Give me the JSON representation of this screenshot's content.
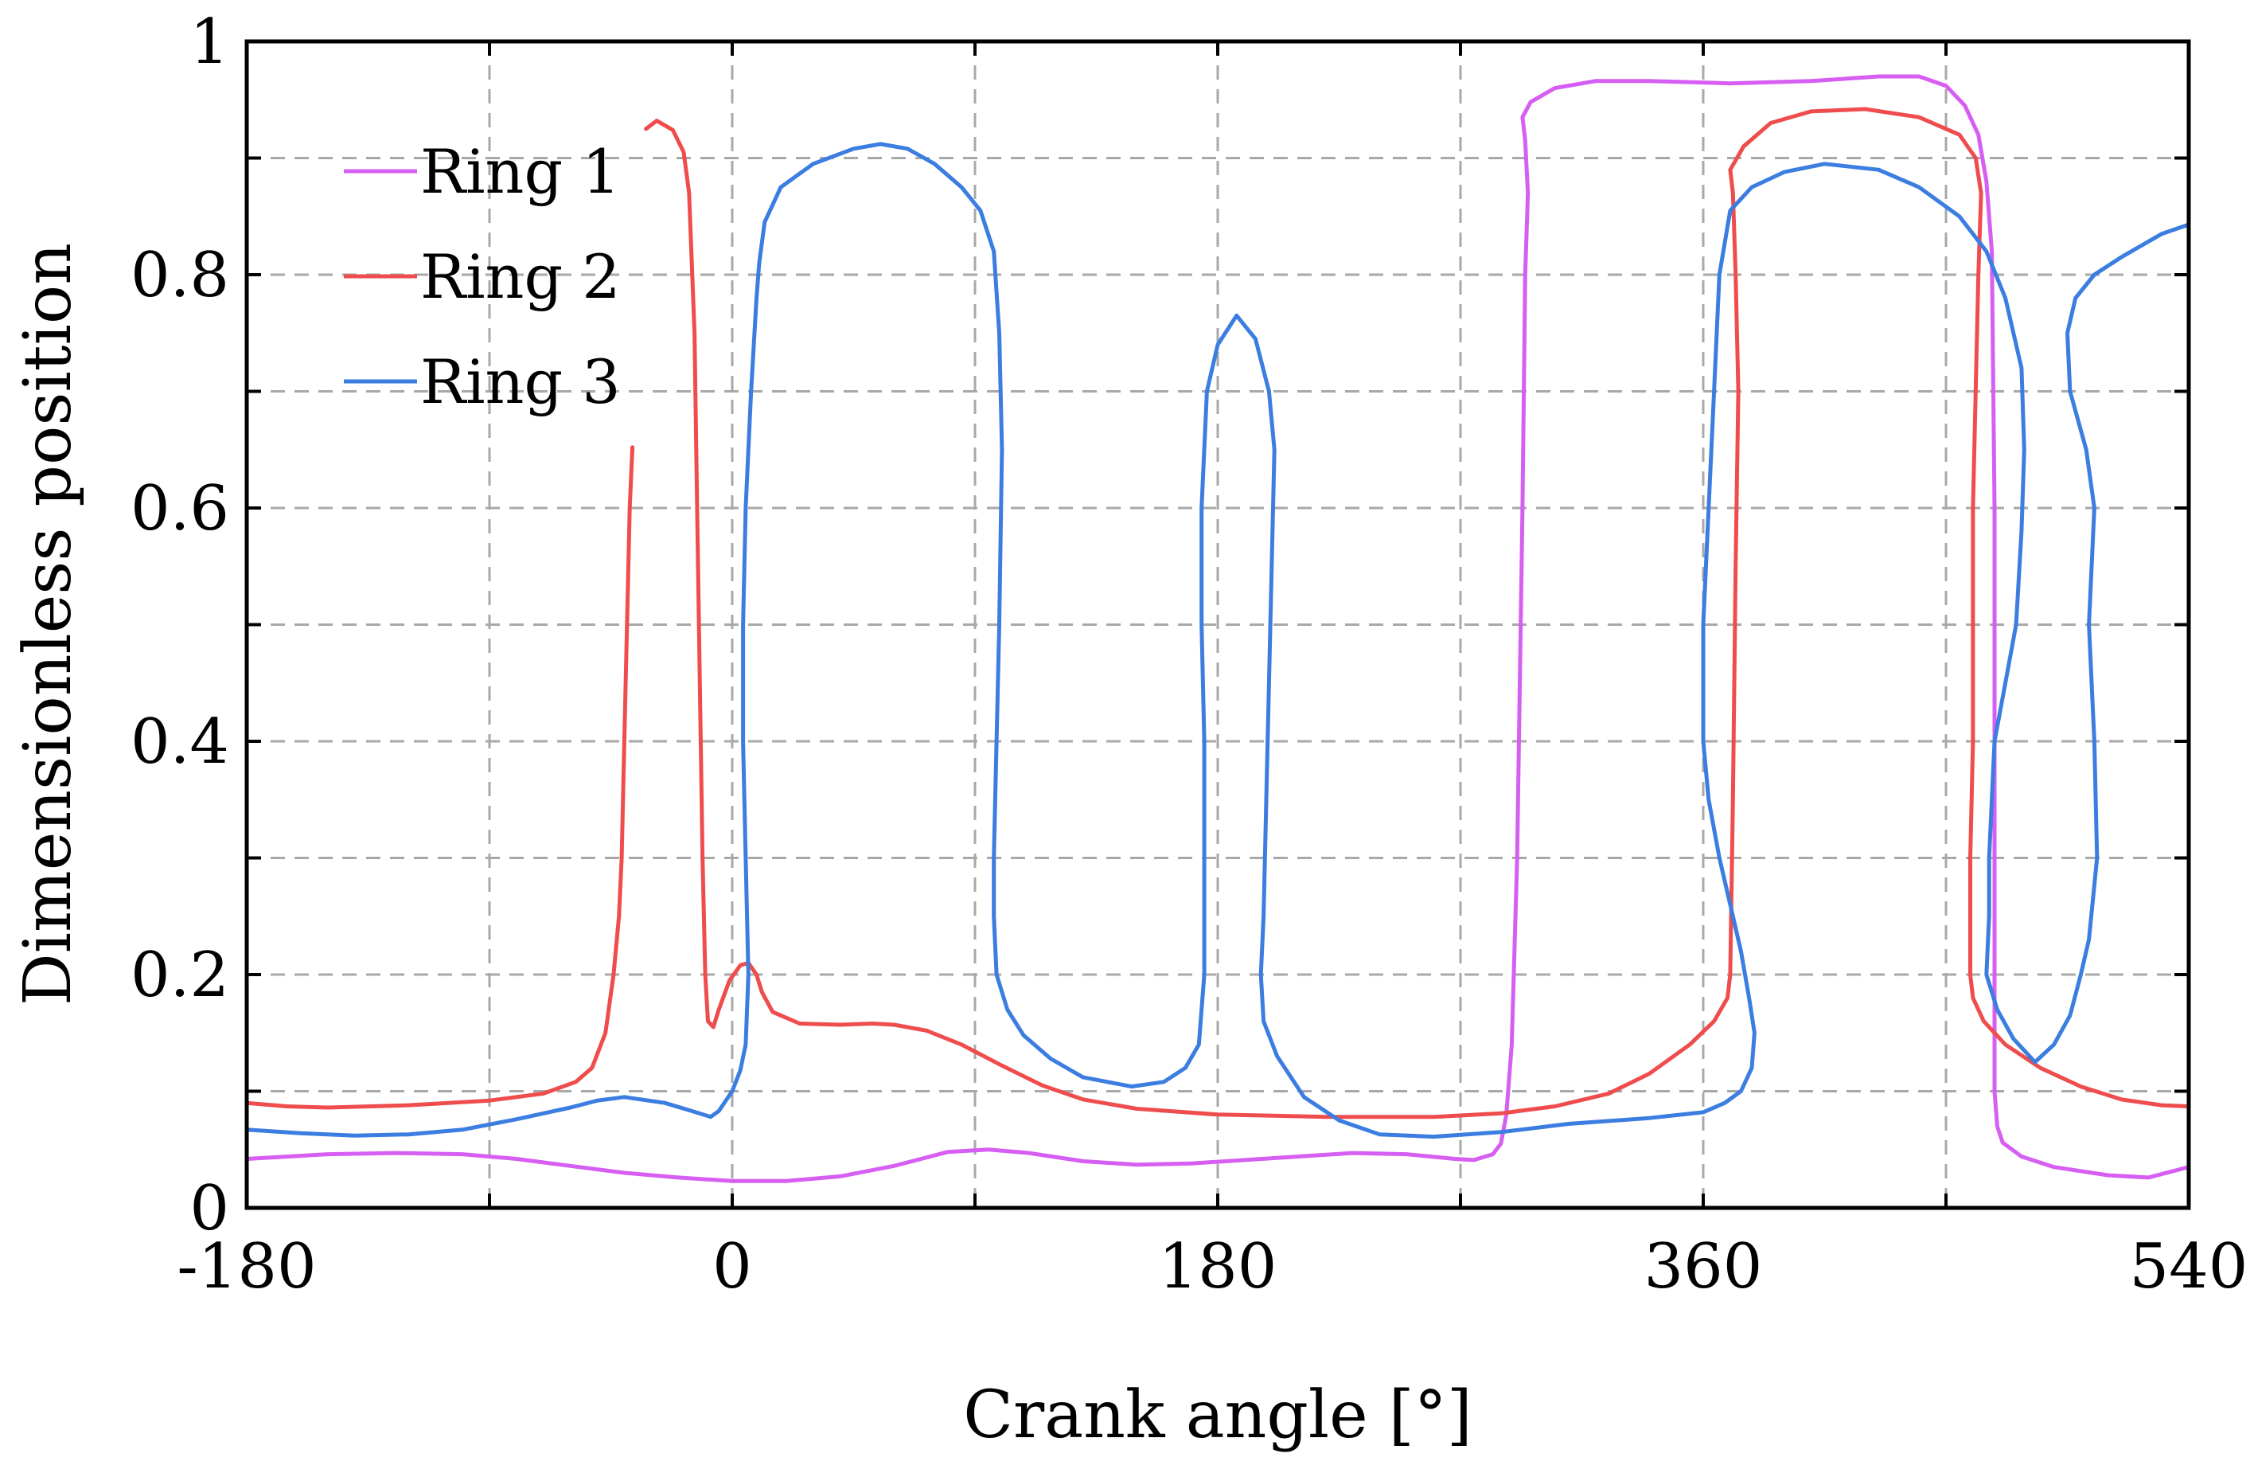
{
  "chart_data": {
    "type": "line",
    "xlabel": "Crank angle [°]",
    "ylabel": "Dimensionless position",
    "xlim": [
      -180,
      540
    ],
    "ylim": [
      0,
      1
    ],
    "xticks": [
      -180,
      -90,
      0,
      90,
      180,
      270,
      360,
      450,
      540
    ],
    "yticks": [
      0,
      0.1,
      0.2,
      0.3,
      0.4,
      0.5,
      0.6,
      0.7,
      0.8,
      0.9,
      1
    ],
    "xtick_labels": [
      {
        "value": -180,
        "label": "-180"
      },
      {
        "value": 0,
        "label": "0"
      },
      {
        "value": 180,
        "label": "180"
      },
      {
        "value": 360,
        "label": "360"
      },
      {
        "value": 540,
        "label": "540"
      }
    ],
    "ytick_labels": [
      {
        "value": 0,
        "label": "0"
      },
      {
        "value": 0.2,
        "label": "0.2"
      },
      {
        "value": 0.4,
        "label": "0.4"
      },
      {
        "value": 0.6,
        "label": "0.6"
      },
      {
        "value": 0.8,
        "label": "0.8"
      },
      {
        "value": 1,
        "label": "1"
      }
    ],
    "grid": true,
    "legend_position": "top-left",
    "series": [
      {
        "name": "Ring 1",
        "color": "#d65ef2",
        "points": [
          [
            -180,
            0.042
          ],
          [
            -150,
            0.046
          ],
          [
            -125,
            0.047
          ],
          [
            -100,
            0.046
          ],
          [
            -80,
            0.042
          ],
          [
            -60,
            0.036
          ],
          [
            -40,
            0.03
          ],
          [
            -20,
            0.026
          ],
          [
            0,
            0.023
          ],
          [
            20,
            0.023
          ],
          [
            40,
            0.027
          ],
          [
            60,
            0.036
          ],
          [
            80,
            0.048
          ],
          [
            95,
            0.05
          ],
          [
            110,
            0.047
          ],
          [
            130,
            0.04
          ],
          [
            150,
            0.037
          ],
          [
            170,
            0.038
          ],
          [
            190,
            0.041
          ],
          [
            210,
            0.044
          ],
          [
            230,
            0.047
          ],
          [
            250,
            0.046
          ],
          [
            268,
            0.042
          ],
          [
            275,
            0.041
          ],
          [
            282,
            0.046
          ],
          [
            285,
            0.055
          ],
          [
            287,
            0.08
          ],
          [
            289,
            0.14
          ],
          [
            291,
            0.3
          ],
          [
            293,
            0.6
          ],
          [
            294,
            0.8
          ],
          [
            295,
            0.87
          ],
          [
            294,
            0.915
          ],
          [
            293,
            0.935
          ],
          [
            296,
            0.948
          ],
          [
            305,
            0.96
          ],
          [
            320,
            0.966
          ],
          [
            340,
            0.966
          ],
          [
            370,
            0.964
          ],
          [
            400,
            0.966
          ],
          [
            425,
            0.97
          ],
          [
            440,
            0.97
          ],
          [
            450,
            0.962
          ],
          [
            457,
            0.945
          ],
          [
            462,
            0.92
          ],
          [
            465,
            0.88
          ],
          [
            467,
            0.82
          ],
          [
            468,
            0.6
          ],
          [
            468,
            0.3
          ],
          [
            468,
            0.1
          ],
          [
            469,
            0.07
          ],
          [
            471,
            0.056
          ],
          [
            478,
            0.044
          ],
          [
            490,
            0.035
          ],
          [
            510,
            0.028
          ],
          [
            525,
            0.026
          ],
          [
            540,
            0.035
          ]
        ]
      },
      {
        "name": "Ring 2",
        "color": "#ef4d4d",
        "points": [
          [
            -37,
            0.652
          ],
          [
            -38,
            0.6
          ],
          [
            -39,
            0.5
          ],
          [
            -40,
            0.4
          ],
          [
            -41,
            0.3
          ],
          [
            -42,
            0.25
          ],
          [
            -44,
            0.2
          ],
          [
            -47,
            0.15
          ],
          [
            -52,
            0.12
          ],
          [
            -58,
            0.108
          ],
          [
            -70,
            0.098
          ],
          [
            -90,
            0.092
          ],
          [
            -120,
            0.088
          ],
          [
            -150,
            0.086
          ],
          [
            -165,
            0.087
          ],
          [
            -180,
            0.09
          ],
          [
            null,
            null
          ],
          [
            -32,
            0.925
          ],
          [
            -28,
            0.932
          ],
          [
            -22,
            0.924
          ],
          [
            -18,
            0.905
          ],
          [
            -16,
            0.87
          ],
          [
            -14,
            0.75
          ],
          [
            -13,
            0.6
          ],
          [
            -12,
            0.45
          ],
          [
            -11,
            0.3
          ],
          [
            -10,
            0.2
          ],
          [
            -9,
            0.16
          ],
          [
            -7,
            0.155
          ],
          [
            -5,
            0.17
          ],
          [
            -1,
            0.195
          ],
          [
            3,
            0.208
          ],
          [
            6,
            0.21
          ],
          [
            9,
            0.2
          ],
          [
            11,
            0.185
          ],
          [
            15,
            0.168
          ],
          [
            25,
            0.158
          ],
          [
            40,
            0.157
          ],
          [
            52,
            0.158
          ],
          [
            60,
            0.157
          ],
          [
            72,
            0.152
          ],
          [
            85,
            0.14
          ],
          [
            100,
            0.122
          ],
          [
            115,
            0.105
          ],
          [
            130,
            0.093
          ],
          [
            150,
            0.085
          ],
          [
            180,
            0.08
          ],
          [
            220,
            0.078
          ],
          [
            260,
            0.078
          ],
          [
            285,
            0.081
          ],
          [
            305,
            0.087
          ],
          [
            325,
            0.098
          ],
          [
            340,
            0.115
          ],
          [
            355,
            0.14
          ],
          [
            364,
            0.16
          ],
          [
            369,
            0.18
          ],
          [
            370,
            0.2
          ],
          [
            371,
            0.35
          ],
          [
            372,
            0.55
          ],
          [
            373,
            0.7
          ],
          [
            372,
            0.8
          ],
          [
            371,
            0.87
          ],
          [
            370,
            0.89
          ],
          [
            375,
            0.91
          ],
          [
            385,
            0.93
          ],
          [
            400,
            0.94
          ],
          [
            420,
            0.942
          ],
          [
            440,
            0.935
          ],
          [
            455,
            0.92
          ],
          [
            461,
            0.9
          ],
          [
            463,
            0.87
          ],
          [
            462,
            0.8
          ],
          [
            461,
            0.7
          ],
          [
            460,
            0.6
          ],
          [
            460,
            0.5
          ],
          [
            460,
            0.4
          ],
          [
            459,
            0.3
          ],
          [
            459,
            0.2
          ],
          [
            460,
            0.18
          ],
          [
            464,
            0.16
          ],
          [
            472,
            0.14
          ],
          [
            485,
            0.12
          ],
          [
            500,
            0.104
          ],
          [
            515,
            0.093
          ],
          [
            530,
            0.088
          ],
          [
            540,
            0.087
          ]
        ]
      },
      {
        "name": "Ring 3",
        "color": "#3b7de0",
        "points": [
          [
            -180,
            0.067
          ],
          [
            -160,
            0.064
          ],
          [
            -140,
            0.062
          ],
          [
            -120,
            0.063
          ],
          [
            -100,
            0.067
          ],
          [
            -80,
            0.076
          ],
          [
            -60,
            0.086
          ],
          [
            -50,
            0.092
          ],
          [
            -40,
            0.095
          ],
          [
            -25,
            0.09
          ],
          [
            -15,
            0.083
          ],
          [
            -8,
            0.078
          ],
          [
            -5,
            0.083
          ],
          [
            0,
            0.1
          ],
          [
            3,
            0.118
          ],
          [
            5,
            0.14
          ],
          [
            6,
            0.2
          ],
          [
            5,
            0.3
          ],
          [
            4,
            0.4
          ],
          [
            4,
            0.5
          ],
          [
            5,
            0.6
          ],
          [
            7,
            0.7
          ],
          [
            9,
            0.78
          ],
          [
            10,
            0.81
          ],
          [
            12,
            0.845
          ],
          [
            18,
            0.875
          ],
          [
            30,
            0.895
          ],
          [
            45,
            0.908
          ],
          [
            55,
            0.912
          ],
          [
            65,
            0.908
          ],
          [
            75,
            0.895
          ],
          [
            85,
            0.875
          ],
          [
            92,
            0.855
          ],
          [
            97,
            0.82
          ],
          [
            99,
            0.75
          ],
          [
            100,
            0.65
          ],
          [
            99,
            0.5
          ],
          [
            98,
            0.4
          ],
          [
            97,
            0.3
          ],
          [
            97,
            0.25
          ],
          [
            98,
            0.2
          ],
          [
            102,
            0.17
          ],
          [
            108,
            0.148
          ],
          [
            118,
            0.128
          ],
          [
            130,
            0.112
          ],
          [
            148,
            0.104
          ],
          [
            160,
            0.108
          ],
          [
            168,
            0.12
          ],
          [
            173,
            0.14
          ],
          [
            175,
            0.2
          ],
          [
            175,
            0.3
          ],
          [
            175,
            0.4
          ],
          [
            174,
            0.5
          ],
          [
            174,
            0.6
          ],
          [
            176,
            0.7
          ],
          [
            180,
            0.74
          ],
          [
            187,
            0.765
          ],
          [
            194,
            0.745
          ],
          [
            199,
            0.7
          ],
          [
            201,
            0.65
          ],
          [
            200,
            0.55
          ],
          [
            199,
            0.45
          ],
          [
            198,
            0.35
          ],
          [
            197,
            0.25
          ],
          [
            196,
            0.2
          ],
          [
            197,
            0.16
          ],
          [
            202,
            0.13
          ],
          [
            212,
            0.095
          ],
          [
            225,
            0.075
          ],
          [
            240,
            0.063
          ],
          [
            260,
            0.061
          ],
          [
            285,
            0.065
          ],
          [
            310,
            0.072
          ],
          [
            340,
            0.077
          ],
          [
            360,
            0.082
          ],
          [
            368,
            0.09
          ],
          [
            374,
            0.1
          ],
          [
            378,
            0.12
          ],
          [
            379,
            0.15
          ],
          [
            377,
            0.18
          ],
          [
            374,
            0.22
          ],
          [
            370,
            0.26
          ],
          [
            366,
            0.3
          ],
          [
            362,
            0.35
          ],
          [
            360,
            0.4
          ],
          [
            360,
            0.5
          ],
          [
            362,
            0.6
          ],
          [
            364,
            0.7
          ],
          [
            366,
            0.8
          ],
          [
            370,
            0.855
          ],
          [
            378,
            0.875
          ],
          [
            390,
            0.888
          ],
          [
            405,
            0.895
          ],
          [
            425,
            0.89
          ],
          [
            440,
            0.875
          ],
          [
            455,
            0.85
          ],
          [
            465,
            0.82
          ],
          [
            472,
            0.78
          ],
          [
            478,
            0.72
          ],
          [
            479,
            0.65
          ],
          [
            478,
            0.58
          ],
          [
            476,
            0.5
          ],
          [
            472,
            0.45
          ],
          [
            468,
            0.4
          ],
          [
            466,
            0.3
          ],
          [
            466,
            0.25
          ],
          [
            465,
            0.2
          ],
          [
            469,
            0.17
          ],
          [
            475,
            0.145
          ],
          [
            483,
            0.125
          ],
          [
            490,
            0.14
          ],
          [
            496,
            0.165
          ],
          [
            500,
            0.2
          ],
          [
            503,
            0.23
          ],
          [
            506,
            0.3
          ],
          [
            505,
            0.4
          ],
          [
            503,
            0.5
          ],
          [
            505,
            0.6
          ],
          [
            502,
            0.65
          ],
          [
            496,
            0.7
          ],
          [
            495,
            0.75
          ],
          [
            498,
            0.78
          ],
          [
            505,
            0.8
          ],
          [
            515,
            0.815
          ],
          [
            530,
            0.835
          ],
          [
            540,
            0.843
          ]
        ]
      }
    ]
  }
}
